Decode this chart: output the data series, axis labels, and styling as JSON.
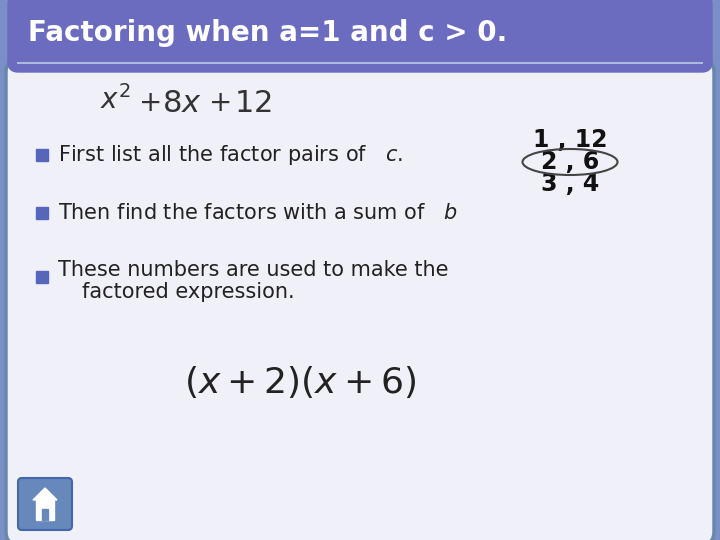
{
  "title": "Factoring when a=1 and c > 0.",
  "title_bg_color": "#6B6BBF",
  "title_text_color": "#ffffff",
  "body_bg_color": "#f0f0f8",
  "body_border_color": "#6688aa",
  "slide_bg_color": "#7b8fc7",
  "bullet_color": "#8B4040",
  "factor_pairs": [
    "1 , 12",
    "2 , 6",
    "3 , 4"
  ],
  "ellipse_row": 1,
  "font_size_title": 20,
  "font_size_body": 15,
  "font_size_factors": 15
}
